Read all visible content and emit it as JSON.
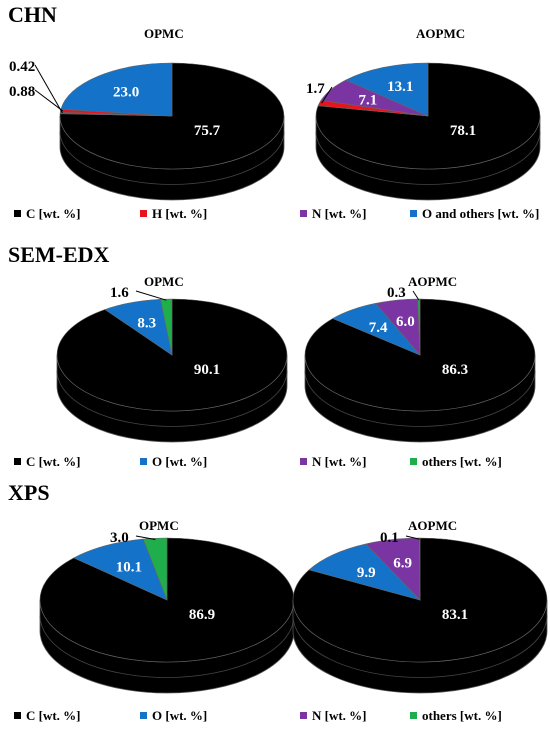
{
  "colors": {
    "C": "#000000",
    "H": "#e8141c",
    "N": "#7a35a3",
    "O": "#1473c8",
    "others": "#1fae4b"
  },
  "chart_data": [
    {
      "type": "pie",
      "section": "CHN",
      "legend": [
        {
          "key": "C",
          "label": "C [wt. %]"
        },
        {
          "key": "H",
          "label": "H [wt. %]"
        },
        {
          "key": "N",
          "label": "N [wt. %]"
        },
        {
          "key": "O",
          "label": "O and others [wt. %]"
        }
      ],
      "pies": [
        {
          "title": "OPMC",
          "slices": [
            {
              "key": "C",
              "value": 75.7,
              "label": "75.7"
            },
            {
              "key": "N",
              "value": 0.42,
              "label": "0.42"
            },
            {
              "key": "H",
              "value": 0.88,
              "label": "0.88"
            },
            {
              "key": "O",
              "value": 23.0,
              "label": "23.0"
            }
          ]
        },
        {
          "title": "AOPMC",
          "slices": [
            {
              "key": "C",
              "value": 78.1,
              "label": "78.1"
            },
            {
              "key": "H",
              "value": 1.7,
              "label": "1.7"
            },
            {
              "key": "N",
              "value": 7.1,
              "label": "7.1"
            },
            {
              "key": "O",
              "value": 13.1,
              "label": "13.1"
            }
          ]
        }
      ]
    },
    {
      "type": "pie",
      "section": "SEM-EDX",
      "legend": [
        {
          "key": "C",
          "label": "C [wt. %]"
        },
        {
          "key": "O",
          "label": "O [wt. %]"
        },
        {
          "key": "N",
          "label": "N [wt. %]"
        },
        {
          "key": "others",
          "label": "others [wt. %]"
        }
      ],
      "pies": [
        {
          "title": "OPMC",
          "slices": [
            {
              "key": "C",
              "value": 90.1,
              "label": "90.1"
            },
            {
              "key": "O",
              "value": 8.3,
              "label": "8.3"
            },
            {
              "key": "others",
              "value": 1.6,
              "label": "1.6"
            }
          ]
        },
        {
          "title": "AOPMC",
          "slices": [
            {
              "key": "C",
              "value": 86.3,
              "label": "86.3"
            },
            {
              "key": "O",
              "value": 7.4,
              "label": "7.4"
            },
            {
              "key": "N",
              "value": 6.0,
              "label": "6.0"
            },
            {
              "key": "others",
              "value": 0.3,
              "label": "0.3"
            }
          ]
        }
      ]
    },
    {
      "type": "pie",
      "section": "XPS",
      "legend": [
        {
          "key": "C",
          "label": "C [wt. %]"
        },
        {
          "key": "O",
          "label": "O [wt. %]"
        },
        {
          "key": "N",
          "label": "N [wt. %]"
        },
        {
          "key": "others",
          "label": "others [wt. %]"
        }
      ],
      "pies": [
        {
          "title": "OPMC",
          "slices": [
            {
              "key": "C",
              "value": 86.9,
              "label": "86.9"
            },
            {
              "key": "O",
              "value": 10.1,
              "label": "10.1"
            },
            {
              "key": "others",
              "value": 3.0,
              "label": "3.0"
            }
          ]
        },
        {
          "title": "AOPMC",
          "slices": [
            {
              "key": "C",
              "value": 83.1,
              "label": "83.1"
            },
            {
              "key": "O",
              "value": 9.9,
              "label": "9.9"
            },
            {
              "key": "N",
              "value": 6.9,
              "label": "6.9"
            },
            {
              "key": "others",
              "value": 0.1,
              "label": "0.1"
            }
          ]
        }
      ]
    }
  ]
}
